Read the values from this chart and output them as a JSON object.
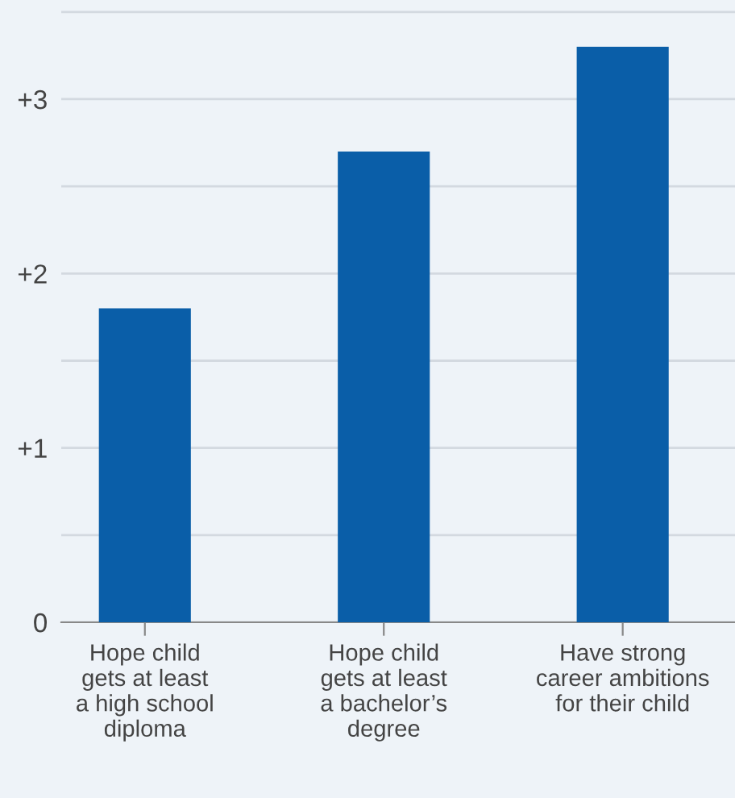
{
  "chart_data": {
    "type": "bar",
    "categories": [
      "Hope child\ngets at least\na high school\ndiploma",
      "Hope child\ngets at least\na bachelor’s\ndegree",
      "Have strong\ncareer ambitions\nfor their child"
    ],
    "values": [
      1.8,
      2.7,
      3.3
    ],
    "color": "#0a5ea8",
    "ylim": [
      0,
      3.55
    ],
    "yticks": [
      {
        "value": 0,
        "label": "0"
      },
      {
        "value": 0.5,
        "label": null
      },
      {
        "value": 1,
        "label": "+1"
      },
      {
        "value": 1.5,
        "label": null
      },
      {
        "value": 2,
        "label": "+2"
      },
      {
        "value": 2.5,
        "label": null
      },
      {
        "value": 3,
        "label": "+3"
      },
      {
        "value": 3.5,
        "label": null
      }
    ],
    "grid": "y"
  }
}
